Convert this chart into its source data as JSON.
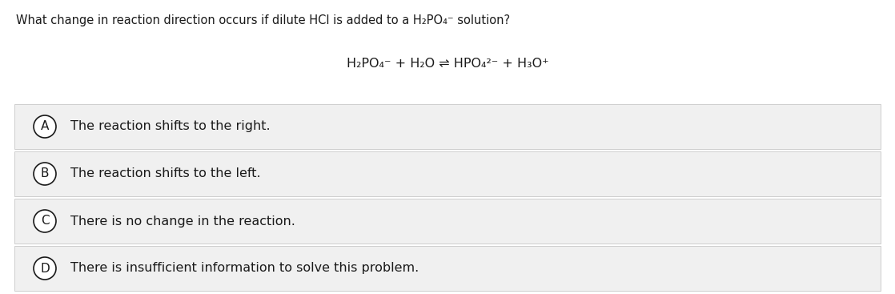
{
  "question": "What change in reaction direction occurs if dilute HCl is added to a H₂PO₄⁻ solution?",
  "equation": "H₂PO₄⁻ + H₂O ⇌ HPO₄²⁻ + H₃O⁺",
  "options": [
    {
      "label": "A",
      "text": "The reaction shifts to the right."
    },
    {
      "label": "B",
      "text": "The reaction shifts to the left."
    },
    {
      "label": "C",
      "text": "There is no change in the reaction."
    },
    {
      "label": "D",
      "text": "There is insufficient information to solve this problem."
    }
  ],
  "bg_color": "#ffffff",
  "option_bg_color": "#f0f0f0",
  "option_border_color": "#c8c8c8",
  "text_color": "#1a1a1a",
  "question_fontsize": 10.5,
  "equation_fontsize": 11.5,
  "option_fontsize": 11.5,
  "fig_width": 11.18,
  "fig_height": 3.67,
  "dpi": 100
}
